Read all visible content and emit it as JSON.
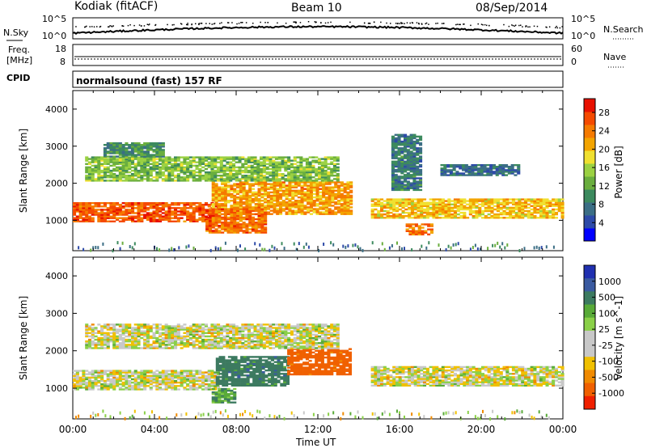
{
  "header": {
    "station": "Kodiak (fitACF)",
    "beam": "Beam 10",
    "date": "08/Sep/2014"
  },
  "panels": {
    "nsky": {
      "left_label": "N.Sky",
      "left_ticks": [
        "10^5",
        "10^0"
      ],
      "right_label": "N.Search",
      "right_ticks": [
        "10^5",
        "10^0"
      ]
    },
    "freq": {
      "label_lines": [
        "Freq.",
        "[MHz]"
      ],
      "ticks": [
        "18",
        "8"
      ],
      "right_label": "Nave",
      "right_ticks": [
        "60",
        "0"
      ]
    },
    "cpid": {
      "label": "CPID",
      "text": "normalsound (fast) 157 RF"
    }
  },
  "chart_data": [
    {
      "type": "heatmap",
      "title": "",
      "xlabel": "",
      "ylabel": "Slant Range [km]",
      "xlim": [
        0,
        24
      ],
      "ylim": [
        180,
        4500
      ],
      "yticks": [
        1000,
        2000,
        3000,
        4000
      ],
      "colorbar": {
        "label": "Power [dB]",
        "ticks": [
          4,
          8,
          12,
          16,
          20,
          24,
          28
        ],
        "range": [
          0,
          31
        ],
        "colors": [
          "#0000ff",
          "#2d4aa8",
          "#3b6e85",
          "#3c8a5e",
          "#6aae3e",
          "#9bd142",
          "#f0e030",
          "#f3a400",
          "#f57a00",
          "#f54a00",
          "#e81000"
        ]
      },
      "echo_bands": [
        {
          "t": [
            0,
            7.2
          ],
          "r": [
            950,
            1450
          ],
          "power_db": 26
        },
        {
          "t": [
            6.8,
            13.6
          ],
          "r": [
            1150,
            2050
          ],
          "power_db": 22
        },
        {
          "t": [
            6.5,
            9.5
          ],
          "r": [
            650,
            1300
          ],
          "power_db": 25
        },
        {
          "t": [
            0.6,
            13
          ],
          "r": [
            2050,
            2700
          ],
          "power_db": 14
        },
        {
          "t": [
            1.5,
            4.5
          ],
          "r": [
            2700,
            3100
          ],
          "power_db": 10
        },
        {
          "t": [
            14.6,
            24
          ],
          "r": [
            1050,
            1550
          ],
          "power_db": 20
        },
        {
          "t": [
            15.6,
            17
          ],
          "r": [
            1800,
            3300
          ],
          "power_db": 8
        },
        {
          "t": [
            18,
            21.8
          ],
          "r": [
            2200,
            2500
          ],
          "power_db": 7
        },
        {
          "t": [
            16.3,
            17.6
          ],
          "r": [
            600,
            900
          ],
          "power_db": 24
        }
      ]
    },
    {
      "type": "heatmap",
      "title": "",
      "xlabel": "Time UT",
      "ylabel": "Slant Range [km]",
      "xlim": [
        0,
        24
      ],
      "ylim": [
        180,
        4500
      ],
      "xticks": [
        "00:00",
        "04:00",
        "08:00",
        "12:00",
        "16:00",
        "20:00",
        "00:00"
      ],
      "yticks": [
        1000,
        2000,
        3000,
        4000
      ],
      "colorbar": {
        "label": "Velocity [m s^-1]",
        "ticks": [
          1000,
          500,
          100,
          25,
          -25,
          -100,
          -500,
          -1000
        ],
        "colors": [
          "#2030b0",
          "#3a5aa0",
          "#3c7a60",
          "#58aa38",
          "#8ad048",
          "#c8c8c8",
          "#c8c8c8",
          "#f0c000",
          "#f08a00",
          "#f06000",
          "#f02000"
        ]
      },
      "echo_bands": [
        {
          "t": [
            0,
            7.2
          ],
          "r": [
            950,
            1450
          ],
          "velocity": 0
        },
        {
          "t": [
            7,
            10.5
          ],
          "r": [
            1050,
            1850
          ],
          "velocity": 300
        },
        {
          "t": [
            10.5,
            13.6
          ],
          "r": [
            1350,
            2050
          ],
          "velocity": -400
        },
        {
          "t": [
            6.8,
            8
          ],
          "r": [
            600,
            1000
          ],
          "velocity": 150
        },
        {
          "t": [
            0.6,
            13
          ],
          "r": [
            2050,
            2700
          ],
          "velocity": 0
        },
        {
          "t": [
            14.6,
            24
          ],
          "r": [
            1050,
            1550
          ],
          "velocity": 0
        }
      ]
    }
  ]
}
